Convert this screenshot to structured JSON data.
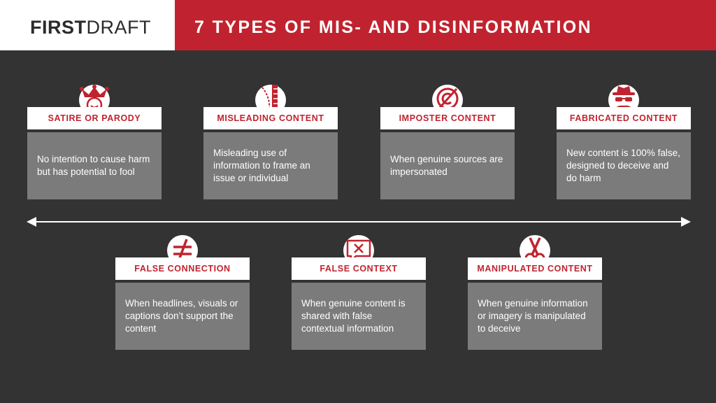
{
  "header": {
    "logo_bold": "FIRST",
    "logo_light": "DRAFT",
    "title": "7 TYPES OF MIS- AND DISINFORMATION"
  },
  "colors": {
    "accent_red": "#c0232f",
    "background": "#333333",
    "card_gray": "#7b7b7b"
  },
  "types": [
    {
      "label": "SATIRE OR PARODY",
      "description": "No intention to cause harm but has potential to fool",
      "icon": "jester-icon"
    },
    {
      "label": "MISLEADING CONTENT",
      "description": "Misleading use of information to frame an issue or individual",
      "icon": "bent-ruler-icon"
    },
    {
      "label": "IMPOSTER CONTENT",
      "description": "When genuine sources are impersonated",
      "icon": "crossed-copyright-icon"
    },
    {
      "label": "FABRICATED CONTENT",
      "description": "New content is 100% false, designed to deceive and do harm",
      "icon": "spy-icon"
    },
    {
      "label": "FALSE CONNECTION",
      "description": "When headlines, visuals or captions don’t support the content",
      "icon": "not-equal-icon"
    },
    {
      "label": "FALSE CONTEXT",
      "description": "When genuine content is shared with false contextual information",
      "icon": "speech-bubble-x-icon"
    },
    {
      "label": "MANIPULATED CONTENT",
      "description": "When genuine information or imagery is manipulated to deceive",
      "icon": "scissors-icon"
    }
  ]
}
